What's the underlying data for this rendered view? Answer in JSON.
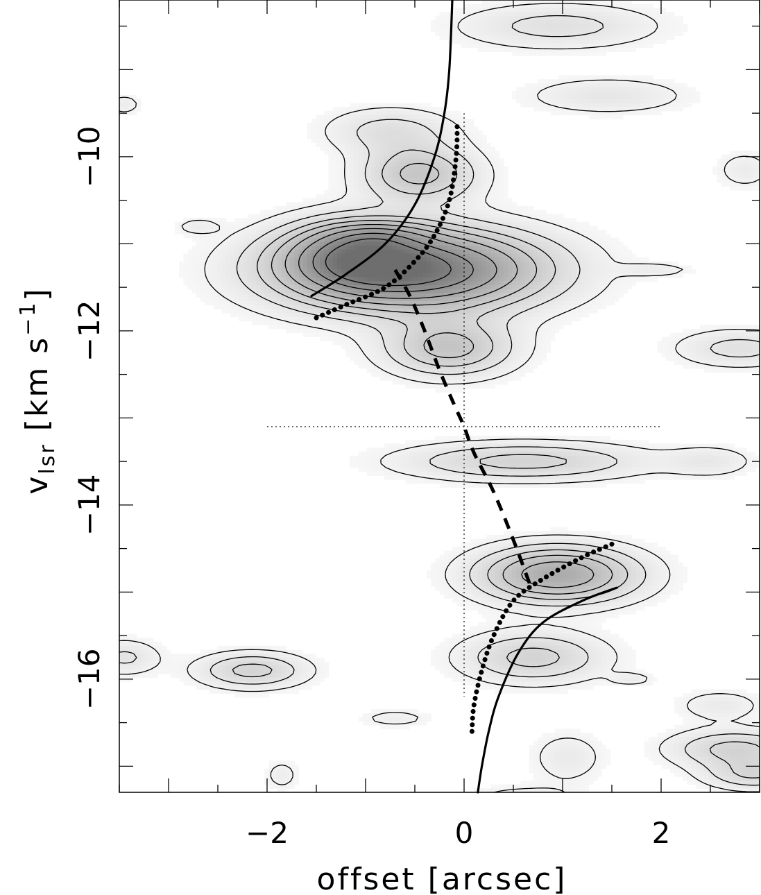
{
  "chart_data": {
    "type": "contour",
    "xlabel": "offset [arcsec]",
    "ylabel": {
      "main": "v",
      "subscript": "lsr",
      "unit_open": " [km s",
      "superscript": "−1",
      "unit_close": "]"
    },
    "xlim": [
      -3.5,
      3.0
    ],
    "ylim": [
      -17.3,
      -8.2
    ],
    "x_ticks": [
      {
        "value": -2,
        "label": "−2"
      },
      {
        "value": 0,
        "label": "0"
      },
      {
        "value": 2,
        "label": "2"
      }
    ],
    "y_ticks": [
      {
        "value": -10,
        "label": "−10"
      },
      {
        "value": -12,
        "label": "−12"
      },
      {
        "value": -14,
        "label": "−14"
      },
      {
        "value": -16,
        "label": "−16"
      }
    ],
    "x_minor_step": 0.5,
    "y_minor_step": 0.5,
    "reference_lines": {
      "vertical_x": 0,
      "vertical_y_range": [
        -16.2,
        -9.5
      ],
      "horizontal_y": -13.1,
      "horizontal_x_range": [
        -2.0,
        2.0
      ]
    },
    "curves": [
      {
        "style": "solid",
        "points": [
          [
            -1.55,
            -11.6
          ],
          [
            -1.2,
            -11.35
          ],
          [
            -0.8,
            -11.0
          ],
          [
            -0.5,
            -10.55
          ],
          [
            -0.3,
            -10.0
          ],
          [
            -0.2,
            -9.5
          ],
          [
            -0.15,
            -9.0
          ],
          [
            -0.12,
            -8.2
          ]
        ]
      },
      {
        "style": "solid",
        "points": [
          [
            1.55,
            -14.95
          ],
          [
            1.2,
            -15.1
          ],
          [
            0.8,
            -15.35
          ],
          [
            0.55,
            -15.7
          ],
          [
            0.35,
            -16.2
          ],
          [
            0.25,
            -16.6
          ],
          [
            0.18,
            -17.0
          ],
          [
            0.14,
            -17.3
          ]
        ]
      },
      {
        "style": "dotted",
        "points": [
          [
            -1.5,
            -11.85
          ],
          [
            -1.2,
            -11.7
          ],
          [
            -0.8,
            -11.5
          ],
          [
            -0.5,
            -11.2
          ],
          [
            -0.3,
            -10.9
          ],
          [
            -0.15,
            -10.5
          ],
          [
            -0.08,
            -10.0
          ],
          [
            -0.07,
            -9.6
          ]
        ]
      },
      {
        "style": "dotted",
        "points": [
          [
            1.5,
            -14.45
          ],
          [
            1.2,
            -14.6
          ],
          [
            0.8,
            -14.85
          ],
          [
            0.5,
            -15.1
          ],
          [
            0.3,
            -15.5
          ],
          [
            0.18,
            -15.9
          ],
          [
            0.1,
            -16.3
          ],
          [
            0.08,
            -16.6
          ]
        ]
      },
      {
        "style": "dashed",
        "points": [
          [
            -0.7,
            -11.3
          ],
          [
            -0.55,
            -11.6
          ],
          [
            -0.4,
            -12.0
          ],
          [
            -0.25,
            -12.45
          ],
          [
            -0.1,
            -12.85
          ],
          [
            0.0,
            -13.1
          ],
          [
            0.1,
            -13.4
          ],
          [
            0.3,
            -13.85
          ],
          [
            0.5,
            -14.4
          ],
          [
            0.68,
            -14.95
          ]
        ]
      }
    ],
    "features": [
      {
        "x": -0.55,
        "y": -11.3,
        "sx": 0.9,
        "sy": 0.32,
        "peak": 10
      },
      {
        "x": -1.15,
        "y": -11.1,
        "sx": 0.45,
        "sy": 0.25,
        "peak": 4
      },
      {
        "x": 0.95,
        "y": -14.8,
        "sx": 0.55,
        "sy": 0.22,
        "peak": 6
      },
      {
        "x": -0.45,
        "y": -10.2,
        "sx": 0.4,
        "sy": 0.22,
        "peak": 4
      },
      {
        "x": -0.15,
        "y": -12.2,
        "sx": 0.45,
        "sy": 0.22,
        "peak": 4
      },
      {
        "x": 0.6,
        "y": -13.5,
        "sx": 0.85,
        "sy": 0.15,
        "peak": 3
      },
      {
        "x": 0.7,
        "y": -15.75,
        "sx": 0.5,
        "sy": 0.2,
        "peak": 3
      },
      {
        "x": -2.15,
        "y": -15.9,
        "sx": 0.38,
        "sy": 0.14,
        "peak": 3
      },
      {
        "x": 0.95,
        "y": -8.5,
        "sx": 0.7,
        "sy": 0.18,
        "peak": 2
      },
      {
        "x": 1.45,
        "y": -9.3,
        "sx": 0.55,
        "sy": 0.14,
        "peak": 1.6
      },
      {
        "x": -0.75,
        "y": -9.7,
        "sx": 0.45,
        "sy": 0.18,
        "peak": 2
      },
      {
        "x": 2.75,
        "y": -16.8,
        "sx": 0.45,
        "sy": 0.15,
        "peak": 3
      },
      {
        "x": 2.95,
        "y": -17.1,
        "sx": 0.35,
        "sy": 0.12,
        "peak": 2.5
      },
      {
        "x": 2.8,
        "y": -12.2,
        "sx": 0.45,
        "sy": 0.15,
        "peak": 2
      },
      {
        "x": -3.45,
        "y": -15.75,
        "sx": 0.25,
        "sy": 0.14,
        "peak": 1.8
      },
      {
        "x": -3.45,
        "y": -9.4,
        "sx": 0.12,
        "sy": 0.08,
        "peak": 1.2
      },
      {
        "x": 0.6,
        "y": -17.4,
        "sx": 0.4,
        "sy": 0.12,
        "peak": 1.3
      },
      {
        "x": 1.05,
        "y": -16.9,
        "sx": 0.25,
        "sy": 0.2,
        "peak": 1.3
      },
      {
        "x": 2.5,
        "y": -13.5,
        "sx": 0.3,
        "sy": 0.12,
        "peak": 1.3
      },
      {
        "x": -0.85,
        "y": -10.9,
        "sx": 0.35,
        "sy": 0.1,
        "peak": 1.6
      },
      {
        "x": -2.7,
        "y": -10.8,
        "sx": 0.15,
        "sy": 0.06,
        "peak": 1.1
      },
      {
        "x": 1.95,
        "y": -11.3,
        "sx": 0.25,
        "sy": 0.05,
        "peak": 1.1
      },
      {
        "x": 2.85,
        "y": -10.15,
        "sx": 0.2,
        "sy": 0.15,
        "peak": 1.2
      },
      {
        "x": 2.6,
        "y": -16.3,
        "sx": 0.3,
        "sy": 0.12,
        "peak": 1.3
      },
      {
        "x": -0.7,
        "y": -16.45,
        "sx": 0.25,
        "sy": 0.07,
        "peak": 1.1
      },
      {
        "x": -1.85,
        "y": -17.1,
        "sx": 0.12,
        "sy": 0.12,
        "peak": 1.1
      },
      {
        "x": 1.7,
        "y": -16.0,
        "sx": 0.15,
        "sy": 0.05,
        "peak": 1.1
      }
    ],
    "contour_levels": [
      0.7,
      1.6,
      2.6,
      3.6,
      4.8,
      6.2,
      7.8,
      9.2
    ],
    "colors": {
      "background": "#ffffff",
      "ink": "#000000",
      "max_gray": "#6e6e6e"
    }
  }
}
